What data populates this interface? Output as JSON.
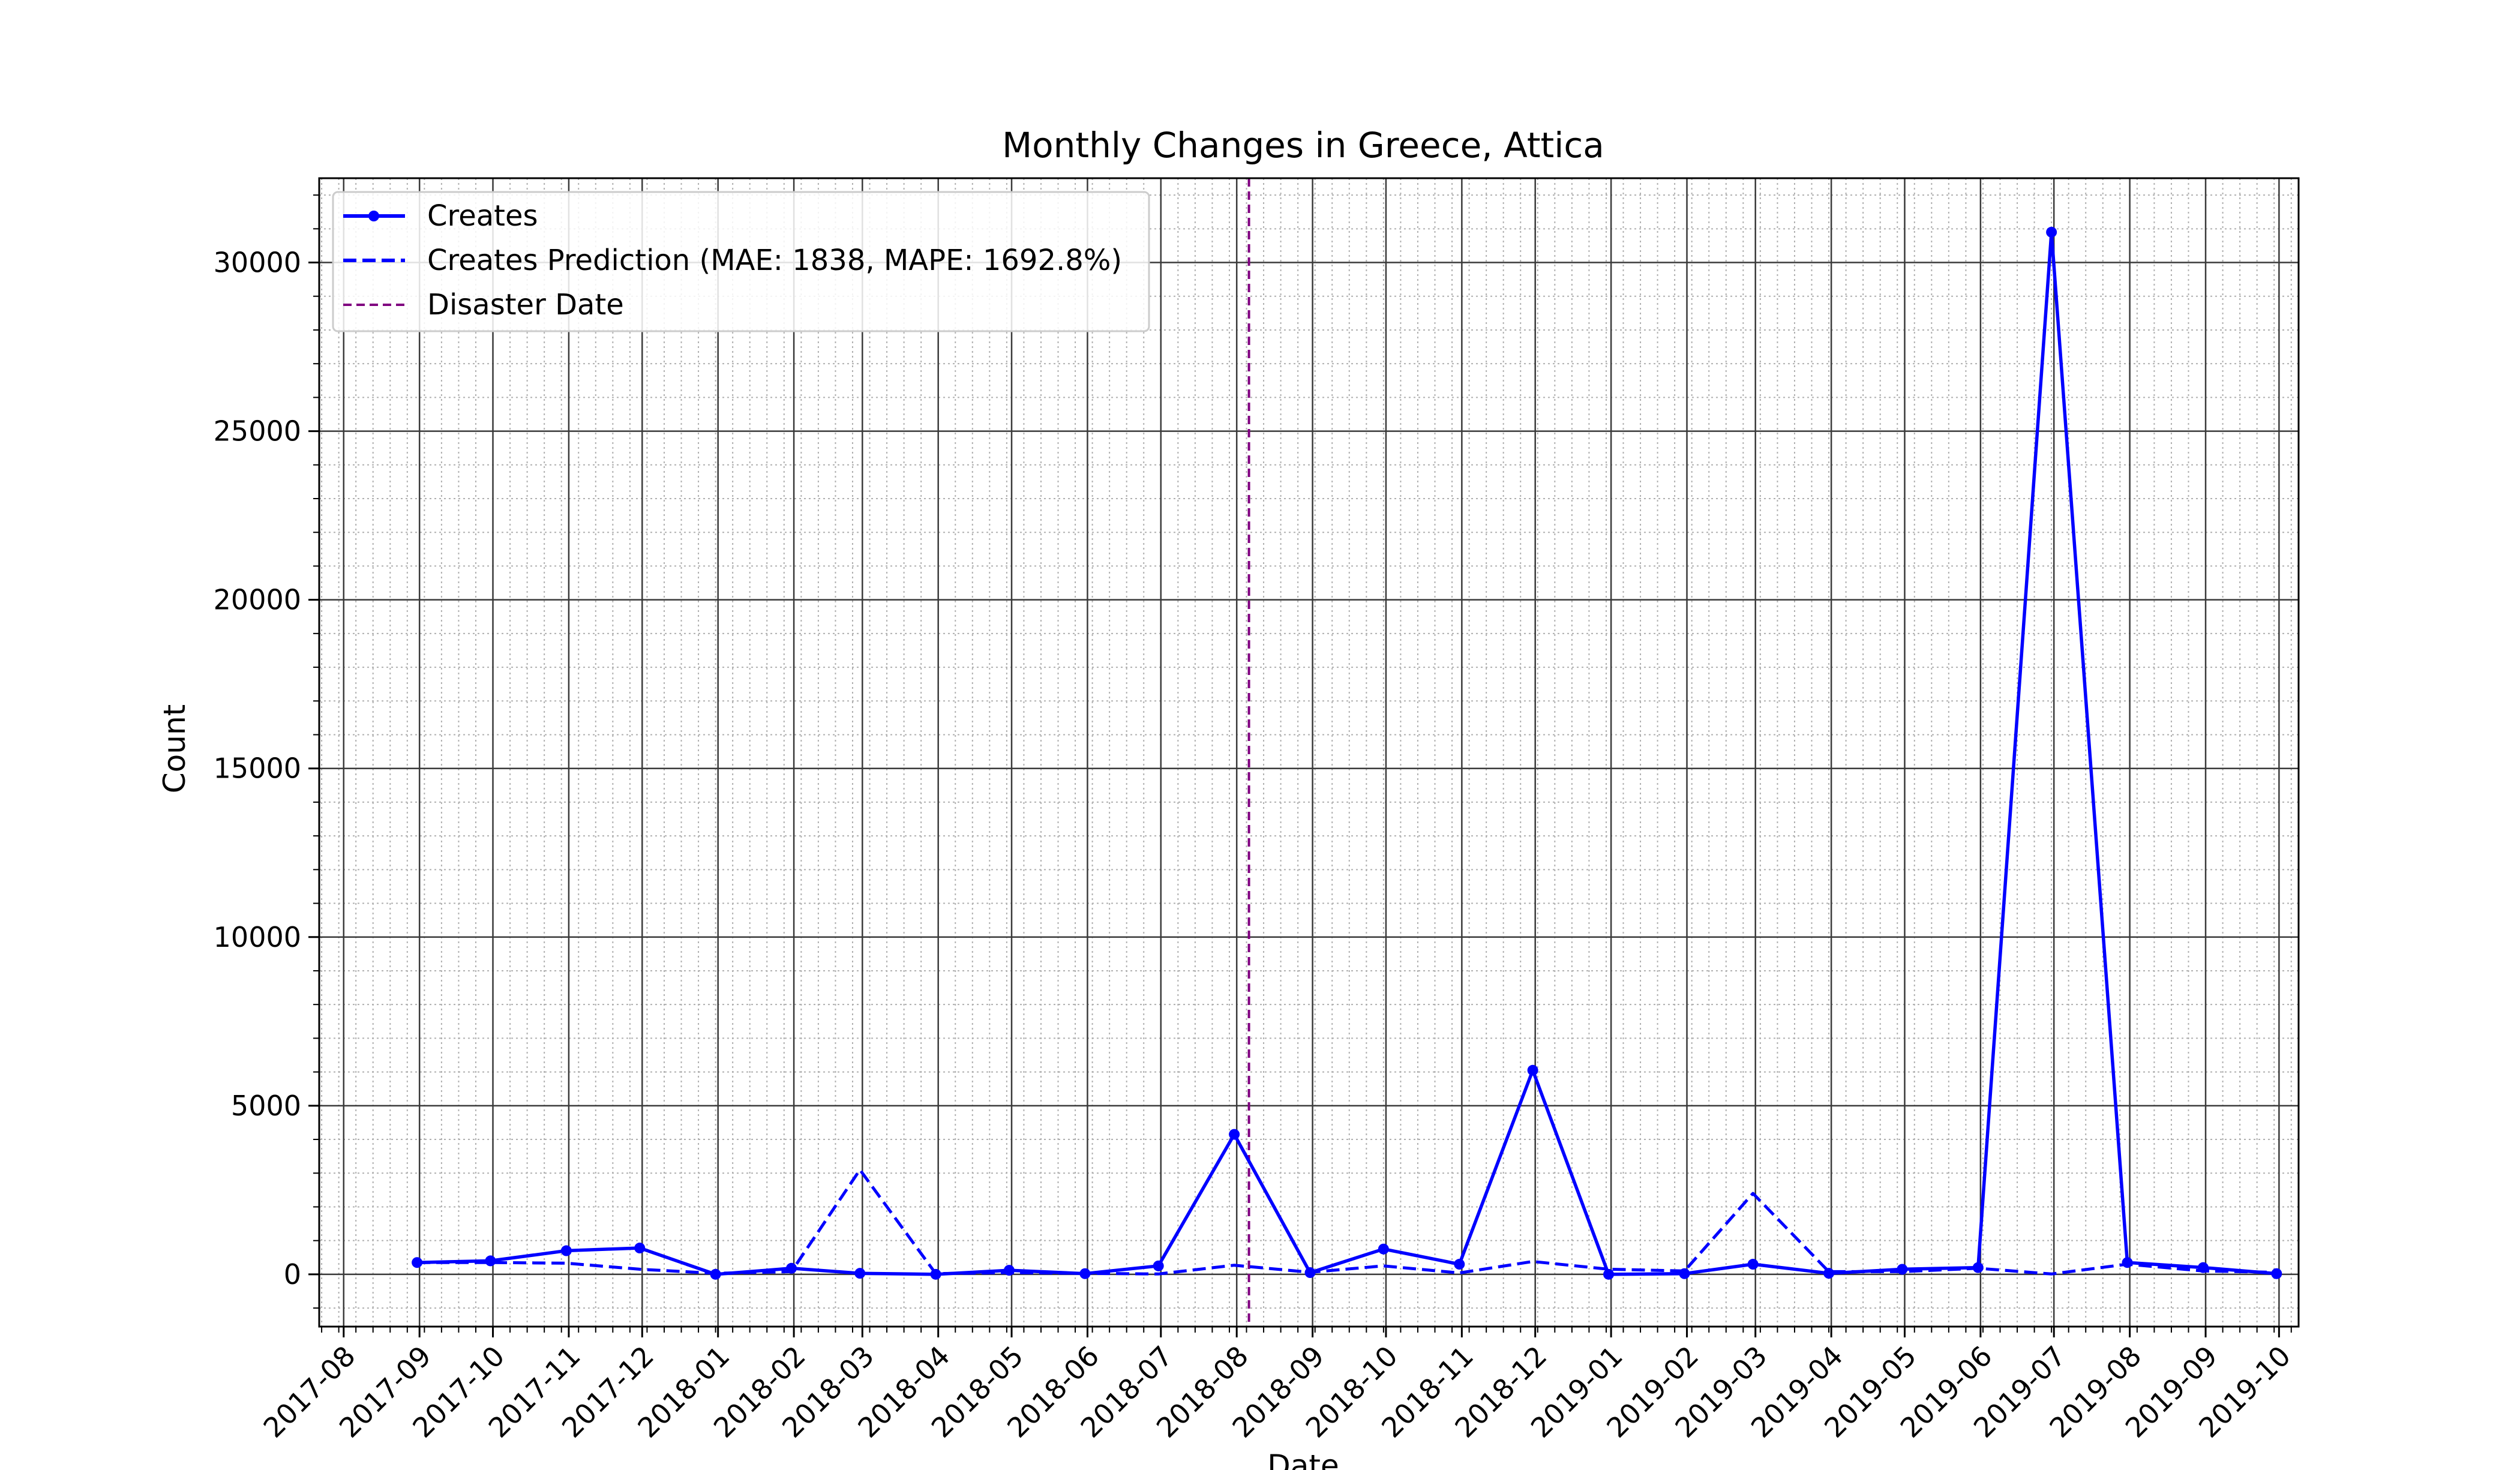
{
  "chart_data": {
    "type": "line",
    "title": "Monthly Changes in Greece, Attica",
    "xlabel": "Date",
    "ylabel": "Count",
    "x_tick_labels": [
      "2017-08",
      "2017-09",
      "2017-10",
      "2017-11",
      "2017-12",
      "2018-01",
      "2018-02",
      "2018-03",
      "2018-04",
      "2018-05",
      "2018-06",
      "2018-07",
      "2018-08",
      "2018-09",
      "2018-10",
      "2018-11",
      "2018-12",
      "2019-01",
      "2019-02",
      "2019-03",
      "2019-04",
      "2019-05",
      "2019-06",
      "2019-07",
      "2019-08",
      "2019-09",
      "2019-10"
    ],
    "y_ticks": [
      0,
      5000,
      10000,
      15000,
      20000,
      25000,
      30000
    ],
    "y_tick_labels": [
      "0",
      "5000",
      "10000",
      "15000",
      "20000",
      "25000",
      "30000"
    ],
    "ylim": [
      -1550,
      32500
    ],
    "xlim": [
      "2017-07-22",
      "2019-10-09"
    ],
    "grid": true,
    "legend_position": "upper-left",
    "x": [
      "2017-08-31",
      "2017-09-30",
      "2017-10-31",
      "2017-11-30",
      "2017-12-31",
      "2018-01-31",
      "2018-02-28",
      "2018-03-31",
      "2018-04-30",
      "2018-05-31",
      "2018-06-30",
      "2018-07-31",
      "2018-08-31",
      "2018-09-30",
      "2018-10-31",
      "2018-11-30",
      "2018-12-31",
      "2019-01-31",
      "2019-02-28",
      "2019-03-31",
      "2019-04-30",
      "2019-05-31",
      "2019-06-30",
      "2019-07-31",
      "2019-08-31",
      "2019-09-30"
    ],
    "series": [
      {
        "name": "Creates",
        "color": "#0000ff",
        "style": "solid-markers",
        "values": [
          350,
          400,
          700,
          780,
          0,
          180,
          30,
          0,
          120,
          20,
          250,
          4150,
          50,
          750,
          300,
          6050,
          0,
          20,
          300,
          30,
          150,
          200,
          30900,
          350,
          200,
          20
        ]
      },
      {
        "name": "Creates Prediction (MAE: 1838, MAPE: 1692.8%)",
        "color": "#0000ff",
        "style": "dashed",
        "values": [
          350,
          350,
          330,
          150,
          30,
          80,
          3100,
          20,
          50,
          30,
          10,
          270,
          60,
          250,
          40,
          380,
          150,
          100,
          2400,
          80,
          80,
          180,
          10,
          300,
          100,
          60
        ]
      }
    ],
    "annotations": [
      {
        "name": "Disaster Date",
        "type": "vline",
        "x": "2018-08-06",
        "color": "#800080",
        "style": "dashed"
      }
    ]
  }
}
